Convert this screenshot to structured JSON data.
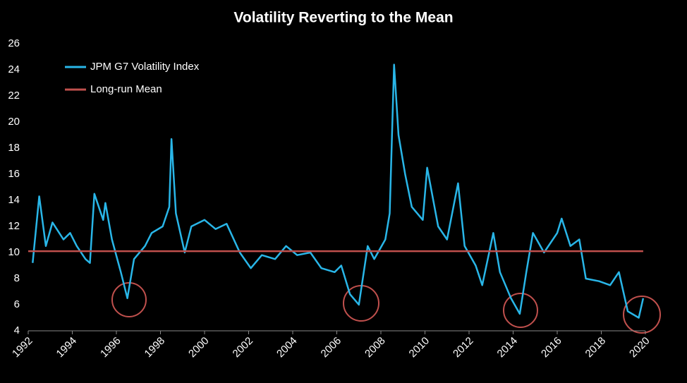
{
  "chart_data": {
    "type": "line",
    "title": "Volatility Reverting to the Mean",
    "series": [
      {
        "name": "JPM G7 Volatility Index",
        "color": "#29b6e8",
        "x": [
          1992.2,
          1992.5,
          1992.8,
          1993.1,
          1993.6,
          1993.9,
          1994.2,
          1994.6,
          1994.8,
          1995.0,
          1995.4,
          1995.5,
          1995.8,
          1996.2,
          1996.5,
          1996.8,
          1997.3,
          1997.6,
          1998.1,
          1998.4,
          1998.5,
          1998.7,
          1999.1,
          1999.4,
          2000.0,
          2000.5,
          2001.0,
          2001.6,
          2002.1,
          2002.6,
          2003.2,
          2003.7,
          2004.2,
          2004.8,
          2005.3,
          2005.9,
          2006.2,
          2006.6,
          2007.0,
          2007.4,
          2007.7,
          2008.2,
          2008.4,
          2008.6,
          2008.8,
          2009.1,
          2009.4,
          2009.9,
          2010.1,
          2010.6,
          2011.0,
          2011.5,
          2011.8,
          2012.3,
          2012.6,
          2013.1,
          2013.4,
          2013.9,
          2014.3,
          2014.6,
          2014.9,
          2015.4,
          2016.0,
          2016.2,
          2016.6,
          2017.0,
          2017.3,
          2017.9,
          2018.4,
          2018.8,
          2019.2,
          2019.7,
          2019.9
        ],
        "values": [
          9.2,
          14.3,
          10.5,
          12.3,
          11,
          11.5,
          10.5,
          9.5,
          9.2,
          14.5,
          12.5,
          13.8,
          11,
          8.5,
          6.5,
          9.5,
          10.5,
          11.5,
          12,
          13.5,
          18.7,
          13,
          10,
          12,
          12.5,
          11.8,
          12.2,
          10,
          8.8,
          9.8,
          9.5,
          10.5,
          9.8,
          10,
          8.8,
          8.5,
          9,
          6.8,
          6,
          10.5,
          9.5,
          11,
          13,
          24.4,
          19,
          16,
          13.5,
          12.5,
          16.5,
          12,
          11,
          15.3,
          10.5,
          9,
          7.5,
          11.5,
          8.5,
          6.5,
          5.3,
          8.5,
          11.5,
          10,
          11.5,
          12.6,
          10.5,
          11,
          8,
          7.8,
          7.5,
          8.5,
          5.5,
          5,
          6.5
        ]
      },
      {
        "name": "Long-run Mean",
        "color": "#c0504d",
        "x": [
          1992,
          2019.9
        ],
        "values": [
          10.1,
          10.1
        ]
      }
    ],
    "xlim": [
      1992,
      2020
    ],
    "xticks": [
      1992,
      1994,
      1996,
      1998,
      2000,
      2002,
      2004,
      2006,
      2008,
      2010,
      2012,
      2014,
      2016,
      2018,
      2020
    ],
    "ylim": [
      4,
      26
    ],
    "yticks": [
      4,
      6,
      8,
      10,
      12,
      14,
      16,
      18,
      20,
      22,
      24,
      26
    ],
    "legend": "upper left"
  }
}
